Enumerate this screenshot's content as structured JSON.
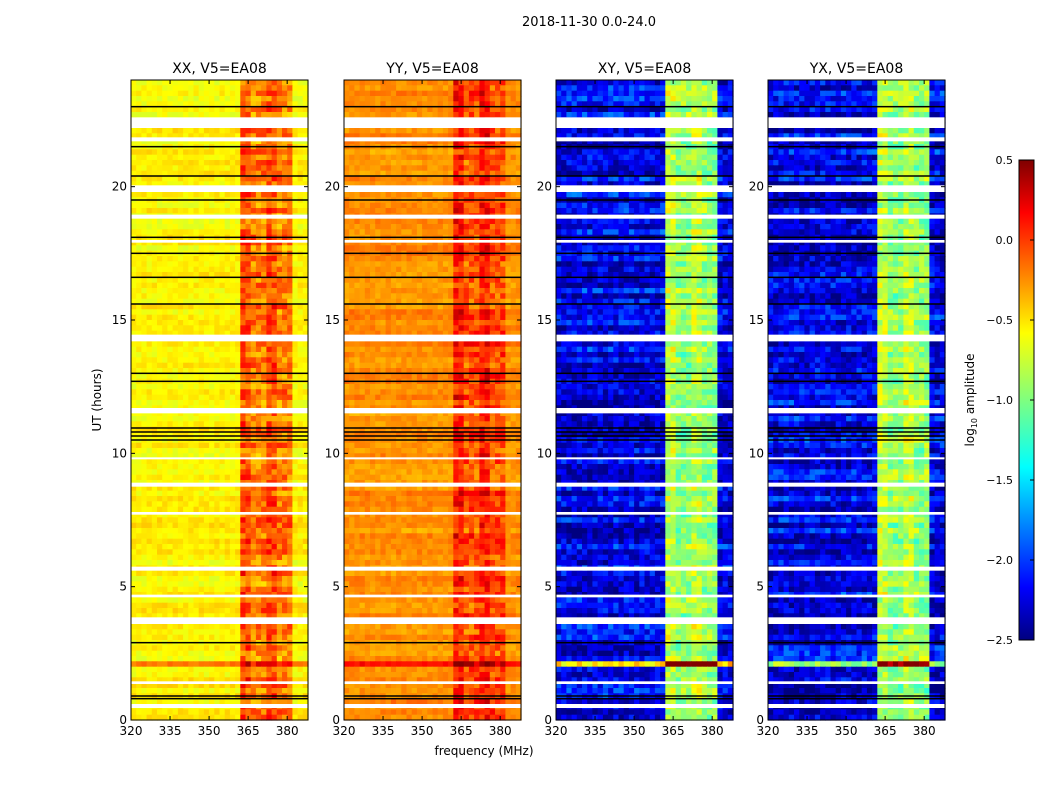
{
  "chart_data": {
    "type": "heatmap",
    "suptitle": "2018-11-30 0.0-24.0",
    "xlabel": "frequency (MHz)",
    "ylabel": "UT (hours)",
    "xlim": [
      320,
      388
    ],
    "ylim": [
      0,
      24
    ],
    "xticks": [
      "320",
      "335",
      "350",
      "365",
      "380"
    ],
    "xtick_values": [
      320,
      335,
      350,
      365,
      380
    ],
    "yticks": [
      "0",
      "5",
      "10",
      "15",
      "20"
    ],
    "ytick_values": [
      0,
      5,
      10,
      15,
      20
    ],
    "colorbar": {
      "label_main": "log",
      "label_sub": "10",
      "label_tail": " amplitude",
      "colormap": "jet",
      "range": [
        -2.5,
        0.5
      ],
      "ticks": [
        "0.5",
        "0.0",
        "−0.5",
        "−1.0",
        "−1.5",
        "−2.0",
        "−2.5"
      ],
      "tick_values": [
        0.5,
        0.0,
        -0.5,
        -1.0,
        -1.5,
        -2.0,
        -2.5
      ]
    },
    "band_MHz": [
      362,
      382
    ],
    "flagged_hours_white": [
      [
        22.2,
        22.6
      ],
      [
        21.7,
        21.85
      ],
      [
        19.8,
        20.05
      ],
      [
        18.8,
        18.95
      ],
      [
        17.9,
        18.0
      ],
      [
        14.2,
        14.45
      ],
      [
        11.5,
        11.7
      ],
      [
        9.8,
        9.85
      ],
      [
        8.75,
        8.9
      ],
      [
        7.7,
        7.8
      ],
      [
        5.6,
        5.75
      ],
      [
        4.6,
        4.7
      ],
      [
        3.6,
        3.85
      ],
      [
        1.35,
        1.45
      ],
      [
        0.45,
        0.6
      ]
    ],
    "black_line_hours": [
      23.0,
      21.5,
      20.4,
      19.5,
      18.1,
      17.5,
      16.6,
      15.6,
      13.0,
      12.7,
      10.95,
      10.8,
      10.65,
      10.5,
      2.9,
      0.9,
      0.8
    ],
    "panels": [
      {
        "title": "XX, V5=EA08",
        "base_level": -0.6,
        "band_level": -0.1
      },
      {
        "title": "YY, V5=EA08",
        "base_level": -0.3,
        "band_level": 0.05
      },
      {
        "title": "XY, V5=EA08",
        "base_level": -2.2,
        "band_level": -0.8
      },
      {
        "title": "YX, V5=EA08",
        "base_level": -2.2,
        "band_level": -0.8
      }
    ]
  }
}
